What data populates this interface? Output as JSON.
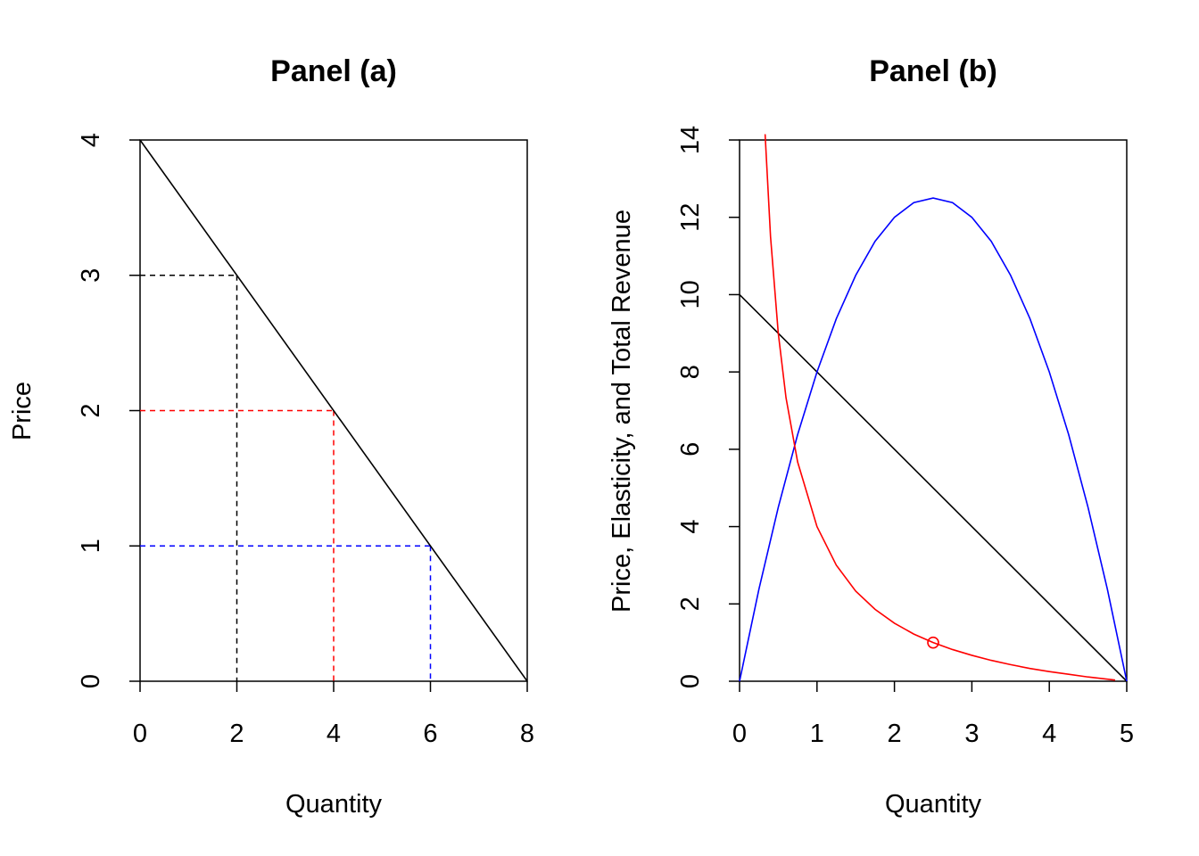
{
  "chart_data": [
    {
      "type": "line",
      "title": "Panel (a)",
      "xlabel": "Quantity",
      "ylabel": "Price",
      "xlim": [
        0,
        8
      ],
      "ylim": [
        0,
        4
      ],
      "xticks": [
        "0",
        "2",
        "4",
        "6",
        "8"
      ],
      "yticks": [
        "0",
        "1",
        "2",
        "3",
        "4"
      ],
      "series": [
        {
          "color": "#000000",
          "style": "solid",
          "x": [
            0,
            8
          ],
          "y": [
            4,
            0
          ]
        }
      ],
      "guides": [
        {
          "color": "#000000",
          "x": 2,
          "y": 3
        },
        {
          "color": "#ff0000",
          "x": 4,
          "y": 2
        },
        {
          "color": "#0000ff",
          "x": 6,
          "y": 1
        }
      ]
    },
    {
      "type": "line",
      "title": "Panel (b)",
      "xlabel": "Quantity",
      "ylabel": "Price, Elasticity, and Total Revenue",
      "xlim": [
        0,
        5
      ],
      "ylim": [
        0,
        14
      ],
      "xticks": [
        "0",
        "1",
        "2",
        "3",
        "4",
        "5"
      ],
      "yticks": [
        "0",
        "2",
        "4",
        "6",
        "8",
        "10",
        "12",
        "14"
      ],
      "series": [
        {
          "color": "#000000",
          "style": "solid",
          "x": [
            0,
            5
          ],
          "y": [
            10,
            0
          ]
        },
        {
          "color": "#0000ff",
          "style": "solid",
          "x": [
            0,
            0.25,
            0.5,
            0.75,
            1,
            1.25,
            1.5,
            1.75,
            2,
            2.25,
            2.5,
            2.75,
            3,
            3.25,
            3.5,
            3.75,
            4,
            4.25,
            4.5,
            4.75,
            5
          ],
          "y": [
            0,
            2.38,
            4.5,
            6.38,
            8,
            9.38,
            10.5,
            11.38,
            12,
            12.38,
            12.5,
            12.38,
            12,
            11.38,
            10.5,
            9.38,
            8,
            6.38,
            4.5,
            2.38,
            0
          ]
        },
        {
          "color": "#ff0000",
          "style": "solid",
          "x": [
            0.33,
            0.4,
            0.5,
            0.6,
            0.75,
            1,
            1.25,
            1.5,
            1.75,
            2,
            2.25,
            2.5,
            2.75,
            3,
            3.25,
            3.5,
            3.75,
            4,
            4.25,
            4.5,
            4.85
          ],
          "y": [
            14.15,
            11.5,
            9,
            7.33,
            5.67,
            4,
            3,
            2.33,
            1.86,
            1.5,
            1.22,
            1,
            0.82,
            0.67,
            0.54,
            0.43,
            0.33,
            0.25,
            0.18,
            0.11,
            0.03
          ]
        }
      ],
      "points": [
        {
          "color": "#ff0000",
          "x": 2.5,
          "y": 1
        }
      ]
    }
  ]
}
